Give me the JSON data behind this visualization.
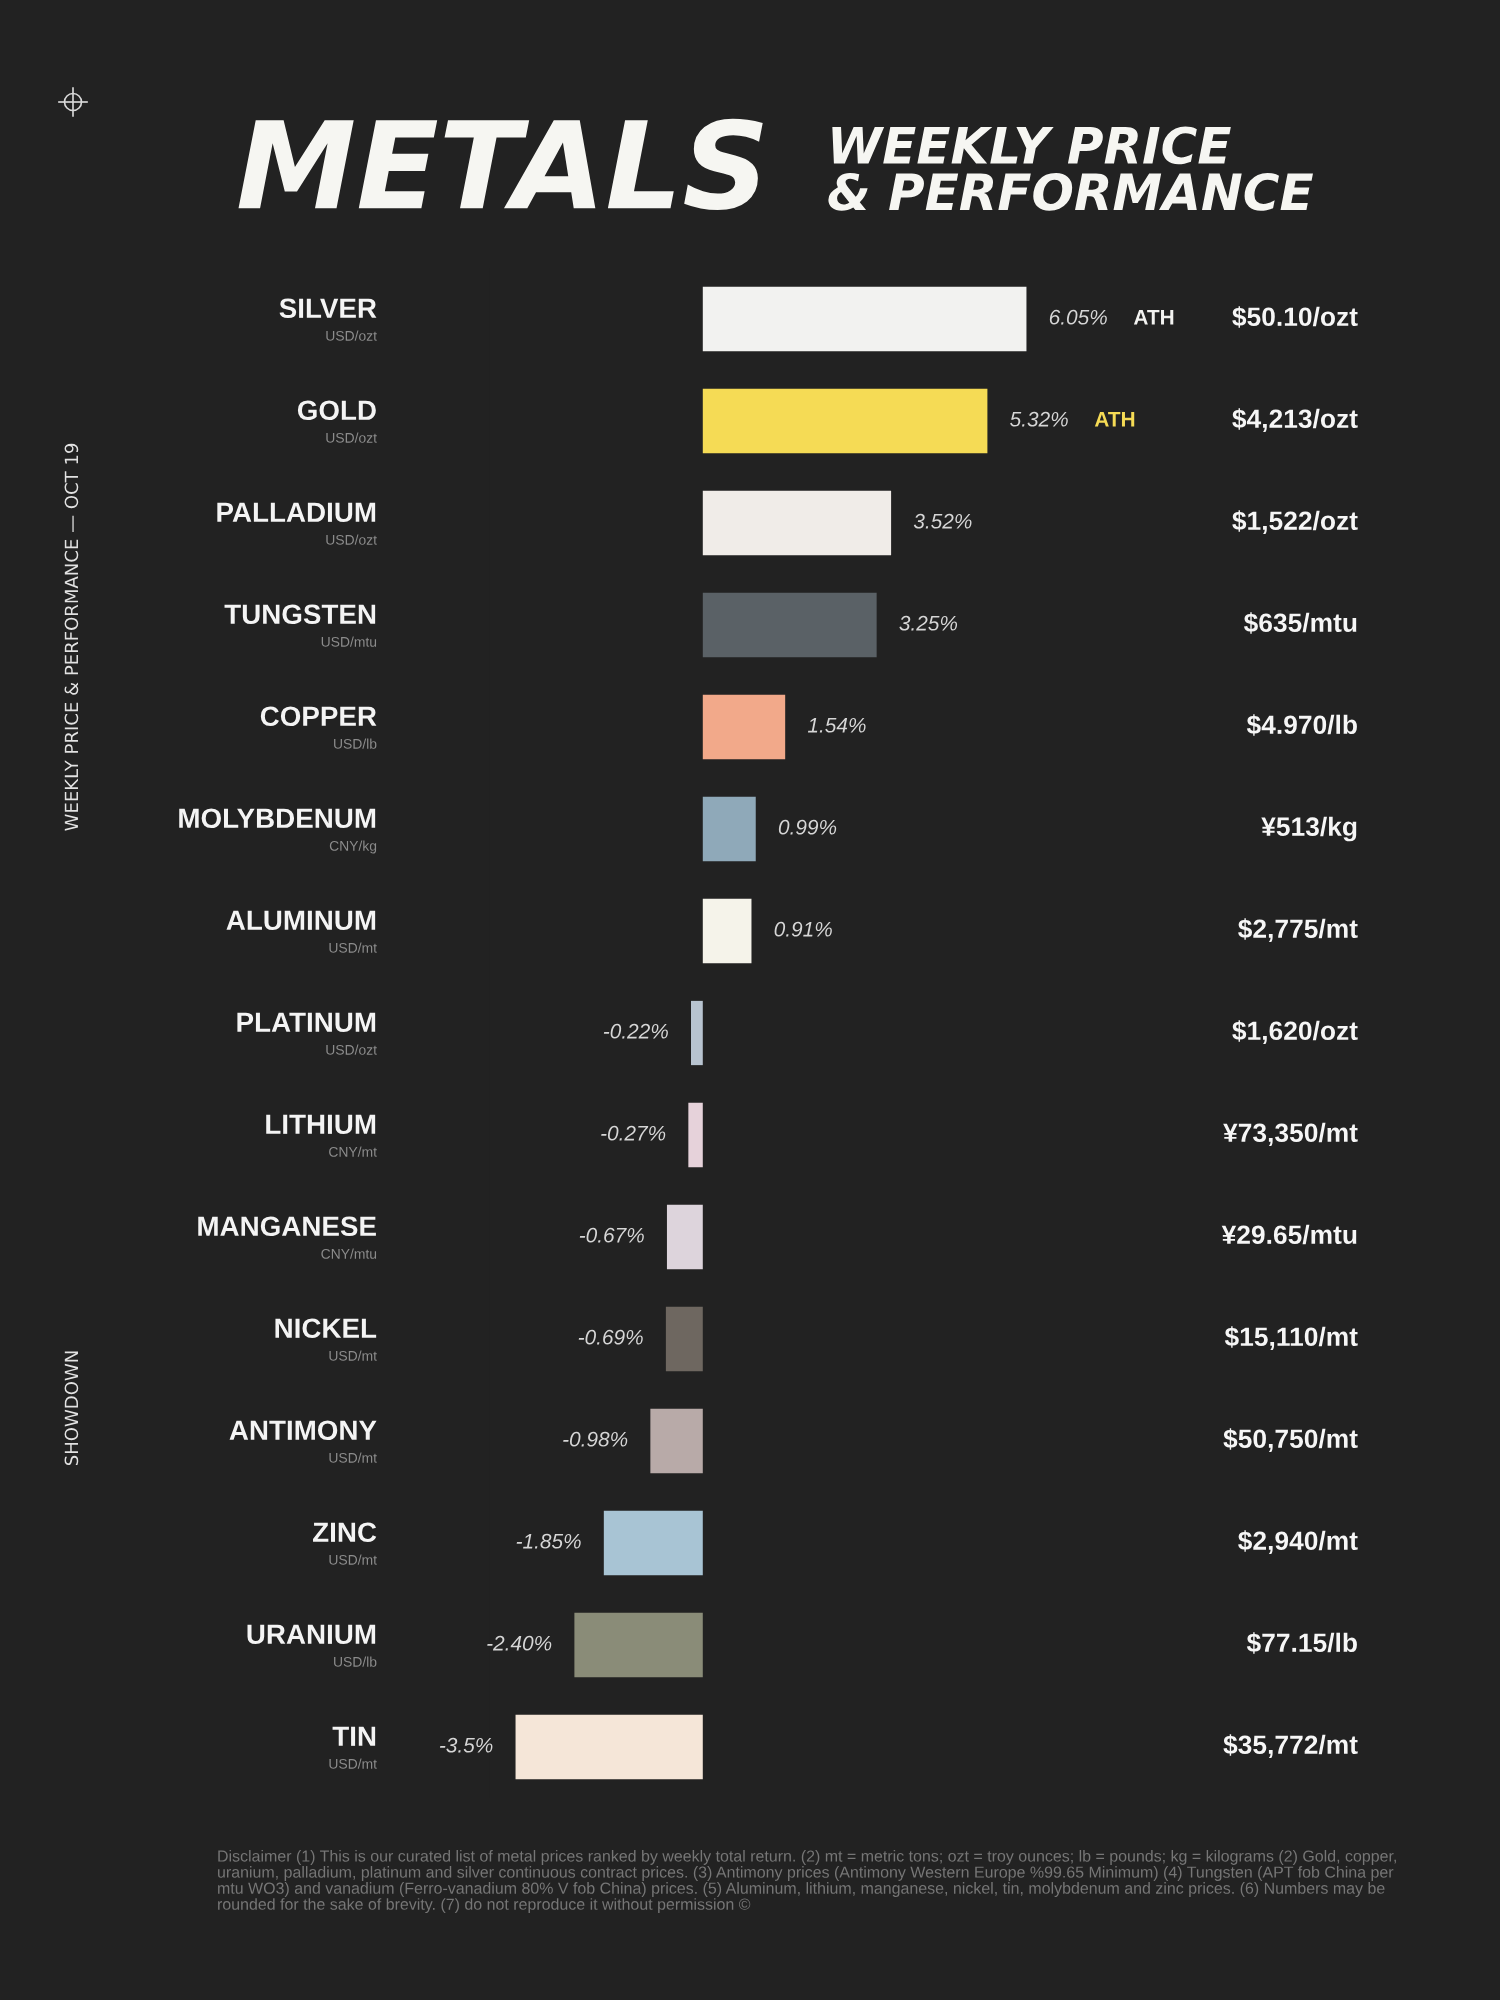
{
  "chart_data": {
    "type": "bar",
    "orientation": "horizontal",
    "title": "METALS",
    "subtitle": "WEEKLY PRICE\n& PERFORMANCE",
    "categories": [
      "SILVER\nUSD/ozt",
      "GOLD\nUSD/ozt",
      "PALLADIUM\nUSD/ozt",
      "TUNGSTEN\nUSD/mtu",
      "COPPER\nUSD/lb",
      "MOLYBDENUM\nCNY/kg",
      "ALUMINUM\nUSD/mt",
      "PLATINUM\nUSD/ozt",
      "LITHIUM\nCNY/mt",
      "MANGANESE\nCNY/mtu",
      "NICKEL\nUSD/mt",
      "ANTIMONY\nUSD/mt",
      "ZINC\nUSD/mt",
      "URANIUM\nUSD/lb",
      "TIN\nUSD/mt"
    ],
    "values": [
      6.05,
      5.32,
      3.52,
      3.25,
      1.54,
      0.99,
      0.91,
      -0.22,
      -0.27,
      -0.67,
      -0.69,
      -0.98,
      -1.85,
      -2.4,
      -3.5
    ],
    "value_labels": [
      "6.05%",
      "5.32%",
      "3.52%",
      "3.25%",
      "1.54%",
      "0.99%",
      "0.91%",
      "-0.22%",
      "-0.27%",
      "-0.67%",
      "-0.69%",
      "-0.98%",
      "-1.85%",
      "-2.40%",
      "-3.5%"
    ],
    "colors": [
      "#f2f2f0",
      "#f5db55",
      "#f0ece8",
      "#5a6166",
      "#f2a98a",
      "#8fa9b9",
      "#f5f3ea",
      "#b8c4d0",
      "#e6d2da",
      "#ddd4dc",
      "#6e6760",
      "#b8aaa8",
      "#a8c4d4",
      "#8a8c78",
      "#f5e6d8"
    ],
    "tick_labels": "y",
    "annotations": [
      "WEEKLY PRICE & PERFORMANCE — OCT 19",
      "SHOWDOWN",
      "ATH",
      "ATH",
      "$50.10/ozt",
      "$4,213/ozt",
      "$1,522/ozt",
      "$635/mtu",
      "$4.970/lb",
      "¥513/kg",
      "$2,775/mt",
      "$1,620/ozt",
      "¥73,350/mt",
      "¥29.65/mtu",
      "$15,110/mt",
      "$50,750/mt",
      "$2,940/mt",
      "$77.15/lb",
      "$35,772/mt",
      "Disclaimer (1) This is our curated list of metal prices ranked by weekly total return. (2) mt = metric tons; ozt = troy ounces; lb = pounds; kg = kilograms (2) Gold, copper, uranium, palladium, platinum and silver continuous contract prices. (3) Antimony prices (Antimony Western Europe %99.65 Minimum) (4) Tungsten (APT fob China per mtu WO3) and vanadium (Ferro-vanadium 80% V fob China) prices. (5) Aluminum, lithium, manganese, nickel, tin, molybdenum and zinc prices. (6) Numbers may be rounded for the sake of brevity. (7) do not reproduce it without permission ©"
    ]
  }
}
